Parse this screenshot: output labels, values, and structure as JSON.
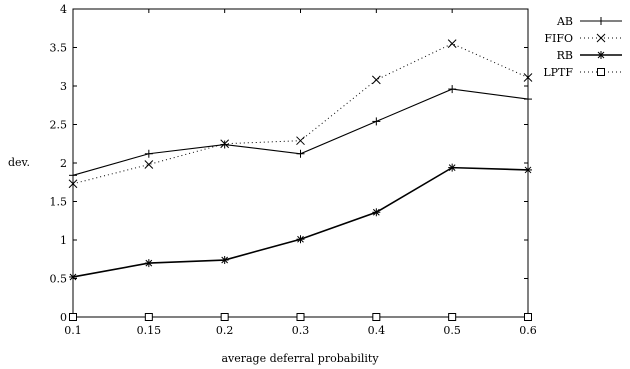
{
  "chart_data": {
    "type": "line",
    "title": "",
    "xlabel": "average deferral probability",
    "ylabel": "dev.",
    "categories": [
      "0.1",
      "0.15",
      "0.2",
      "0.3",
      "0.4",
      "0.5",
      "0.6"
    ],
    "ylim": [
      0,
      4
    ],
    "yticks": [
      "0",
      "0.5",
      "1",
      "1.5",
      "2",
      "2.5",
      "3",
      "3.5",
      "4"
    ],
    "grid": false,
    "legend_position": "top-right",
    "series": [
      {
        "name": "AB",
        "marker": "plus",
        "line": "solid",
        "values": [
          1.84,
          2.12,
          2.24,
          2.12,
          2.54,
          2.96,
          2.83
        ]
      },
      {
        "name": "FIFO",
        "marker": "cross",
        "line": "dotted",
        "values": [
          1.73,
          1.98,
          2.25,
          2.29,
          3.08,
          3.55,
          3.11
        ]
      },
      {
        "name": "RB",
        "marker": "star",
        "line": "solid",
        "values": [
          0.52,
          0.7,
          0.74,
          1.01,
          1.36,
          1.94,
          1.91
        ]
      },
      {
        "name": "LPTF",
        "marker": "square",
        "line": "dotted",
        "values": [
          0.0,
          0.0,
          0.0,
          0.0,
          0.0,
          0.0,
          0.0
        ]
      }
    ]
  }
}
